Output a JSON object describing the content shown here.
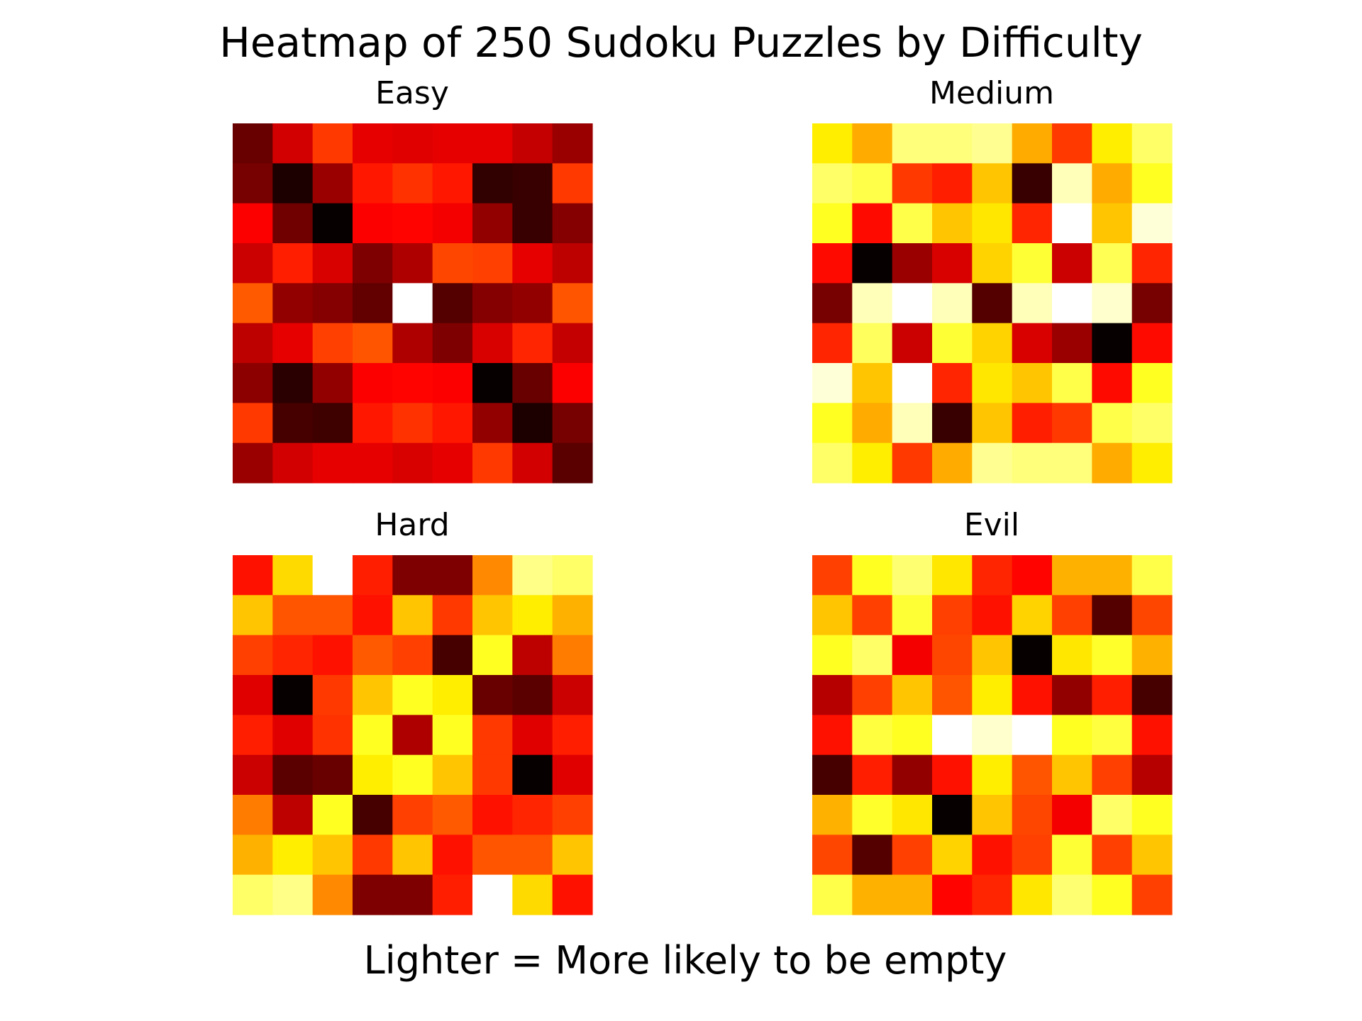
{
  "figure": {
    "title": "Heatmap of 250 Sudoku Puzzles by Difficulty",
    "caption": "Lighter = More likely to be empty"
  },
  "chart_data": [
    {
      "type": "heatmap",
      "title": "Easy",
      "colormap": "hot",
      "value_range": [
        0,
        1
      ],
      "grid": false,
      "axes_visible": false,
      "rows": 9,
      "cols": 9,
      "values": [
        [
          0.15,
          0.3,
          0.45,
          0.33,
          0.32,
          0.33,
          0.33,
          0.28,
          0.22
        ],
        [
          0.17,
          0.04,
          0.22,
          0.4,
          0.44,
          0.4,
          0.07,
          0.08,
          0.45
        ],
        [
          0.36,
          0.16,
          0.01,
          0.36,
          0.37,
          0.35,
          0.21,
          0.08,
          0.19
        ],
        [
          0.29,
          0.41,
          0.31,
          0.18,
          0.25,
          0.47,
          0.46,
          0.33,
          0.27
        ],
        [
          0.5,
          0.21,
          0.19,
          0.14,
          1.0,
          0.12,
          0.19,
          0.21,
          0.49
        ],
        [
          0.27,
          0.33,
          0.46,
          0.49,
          0.25,
          0.18,
          0.31,
          0.42,
          0.28
        ],
        [
          0.2,
          0.06,
          0.21,
          0.36,
          0.37,
          0.36,
          0.01,
          0.15,
          0.36
        ],
        [
          0.45,
          0.1,
          0.09,
          0.4,
          0.44,
          0.4,
          0.21,
          0.04,
          0.17
        ],
        [
          0.22,
          0.3,
          0.33,
          0.33,
          0.31,
          0.33,
          0.45,
          0.3,
          0.13
        ]
      ]
    },
    {
      "type": "heatmap",
      "title": "Medium",
      "colormap": "hot",
      "value_range": [
        0,
        1
      ],
      "grid": false,
      "axes_visible": false,
      "rows": 9,
      "cols": 9,
      "values": [
        [
          0.72,
          0.62,
          0.87,
          0.87,
          0.89,
          0.62,
          0.45,
          0.72,
          0.85
        ],
        [
          0.85,
          0.82,
          0.45,
          0.41,
          0.66,
          0.08,
          0.93,
          0.62,
          0.78
        ],
        [
          0.78,
          0.38,
          0.82,
          0.66,
          0.71,
          0.42,
          1.0,
          0.66,
          0.96
        ],
        [
          0.38,
          0.01,
          0.22,
          0.31,
          0.68,
          0.8,
          0.29,
          0.83,
          0.42
        ],
        [
          0.17,
          0.93,
          1.0,
          0.93,
          0.12,
          0.93,
          1.0,
          0.95,
          0.17
        ],
        [
          0.42,
          0.84,
          0.29,
          0.8,
          0.68,
          0.31,
          0.22,
          0.01,
          0.38
        ],
        [
          0.96,
          0.66,
          1.0,
          0.42,
          0.71,
          0.66,
          0.82,
          0.38,
          0.78
        ],
        [
          0.78,
          0.62,
          0.93,
          0.08,
          0.66,
          0.41,
          0.45,
          0.82,
          0.85
        ],
        [
          0.85,
          0.72,
          0.45,
          0.62,
          0.89,
          0.87,
          0.87,
          0.62,
          0.72
        ]
      ]
    },
    {
      "type": "heatmap",
      "title": "Hard",
      "colormap": "hot",
      "value_range": [
        0,
        1
      ],
      "grid": false,
      "axes_visible": false,
      "rows": 9,
      "cols": 9,
      "values": [
        [
          0.39,
          0.69,
          1.0,
          0.41,
          0.18,
          0.18,
          0.57,
          0.88,
          0.85
        ],
        [
          0.66,
          0.49,
          0.49,
          0.39,
          0.66,
          0.45,
          0.66,
          0.72,
          0.63
        ],
        [
          0.46,
          0.42,
          0.39,
          0.5,
          0.46,
          0.1,
          0.78,
          0.27,
          0.55
        ],
        [
          0.32,
          0.01,
          0.45,
          0.66,
          0.78,
          0.72,
          0.15,
          0.13,
          0.29
        ],
        [
          0.41,
          0.32,
          0.44,
          0.78,
          0.25,
          0.78,
          0.45,
          0.32,
          0.41
        ],
        [
          0.29,
          0.13,
          0.15,
          0.72,
          0.78,
          0.66,
          0.45,
          0.01,
          0.32
        ],
        [
          0.55,
          0.27,
          0.78,
          0.1,
          0.46,
          0.5,
          0.39,
          0.42,
          0.46
        ],
        [
          0.63,
          0.72,
          0.66,
          0.45,
          0.66,
          0.39,
          0.49,
          0.49,
          0.66
        ],
        [
          0.85,
          0.88,
          0.57,
          0.18,
          0.18,
          0.41,
          1.0,
          0.69,
          0.39
        ]
      ]
    },
    {
      "type": "heatmap",
      "title": "Evil",
      "colormap": "hot",
      "value_range": [
        0,
        1
      ],
      "grid": false,
      "axes_visible": false,
      "rows": 9,
      "cols": 9,
      "values": [
        [
          0.46,
          0.78,
          0.86,
          0.71,
          0.42,
          0.37,
          0.63,
          0.63,
          0.82
        ],
        [
          0.66,
          0.46,
          0.8,
          0.46,
          0.39,
          0.68,
          0.46,
          0.12,
          0.47
        ],
        [
          0.78,
          0.85,
          0.35,
          0.47,
          0.66,
          0.01,
          0.71,
          0.79,
          0.63
        ],
        [
          0.26,
          0.46,
          0.66,
          0.49,
          0.72,
          0.39,
          0.21,
          0.41,
          0.1
        ],
        [
          0.39,
          0.81,
          0.78,
          1.0,
          0.95,
          1.0,
          0.78,
          0.81,
          0.39
        ],
        [
          0.1,
          0.41,
          0.21,
          0.39,
          0.72,
          0.49,
          0.66,
          0.46,
          0.26
        ],
        [
          0.63,
          0.79,
          0.71,
          0.01,
          0.66,
          0.47,
          0.35,
          0.85,
          0.78
        ],
        [
          0.47,
          0.12,
          0.46,
          0.68,
          0.39,
          0.46,
          0.8,
          0.46,
          0.66
        ],
        [
          0.82,
          0.63,
          0.63,
          0.37,
          0.42,
          0.71,
          0.86,
          0.78,
          0.46
        ]
      ]
    }
  ]
}
